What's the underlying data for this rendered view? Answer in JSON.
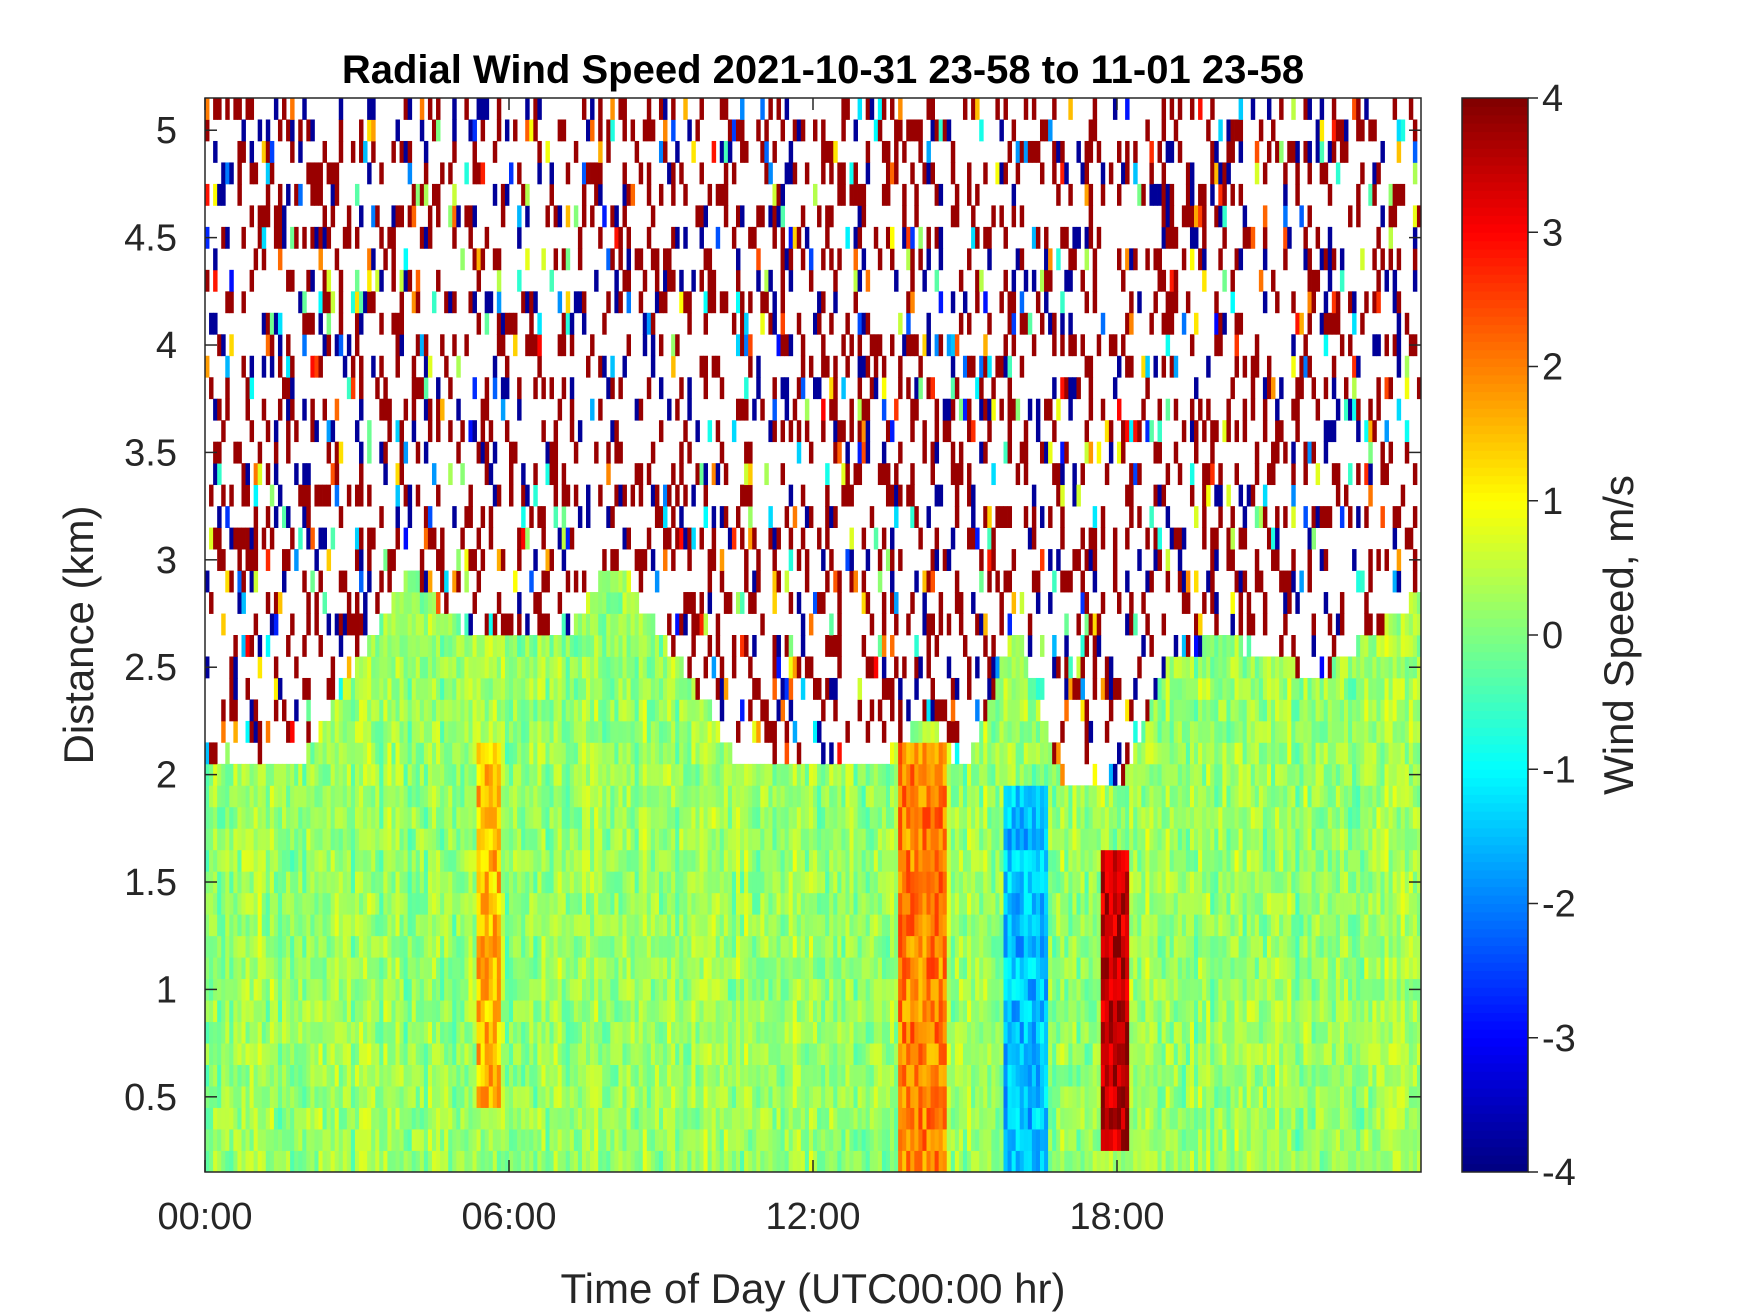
{
  "chart_data": {
    "type": "heatmap",
    "title": "Radial Wind Speed 2021-10-31 23-58 to 11-01 23-58",
    "xlabel": "Time of Day (UTC00:00 hr)",
    "ylabel": "Distance (km)",
    "colorbar_label": "Wind Speed, m/s",
    "colormap": "jet",
    "x_unit": "hours",
    "xlim": [
      0,
      24
    ],
    "ylim": [
      0.15,
      5.15
    ],
    "clim": [
      -4,
      4
    ],
    "x_ticks": [
      0,
      6,
      12,
      18
    ],
    "x_tick_labels": [
      "00:00",
      "06:00",
      "12:00",
      "18:00"
    ],
    "y_ticks": [
      0.5,
      1,
      1.5,
      2,
      2.5,
      3,
      3.5,
      4,
      4.5,
      5
    ],
    "y_tick_labels": [
      "0.5",
      "1",
      "1.5",
      "2",
      "2.5",
      "3",
      "3.5",
      "4",
      "4.5",
      "5"
    ],
    "colorbar_ticks": [
      -4,
      -3,
      -2,
      -1,
      0,
      1,
      2,
      3,
      4
    ],
    "colorbar_tick_labels": [
      "-4",
      "-3",
      "-2",
      "-1",
      "0",
      "1",
      "2",
      "3",
      "4"
    ],
    "grid": false,
    "valid_data_top_km": [
      [
        0,
        2.05
      ],
      [
        2,
        2.1
      ],
      [
        4,
        2.95
      ],
      [
        5,
        2.7
      ],
      [
        7,
        2.6
      ],
      [
        8,
        3.0
      ],
      [
        9,
        2.65
      ],
      [
        10,
        2.3
      ],
      [
        10.5,
        2.05
      ],
      [
        12,
        2.05
      ],
      [
        13.5,
        2.05
      ],
      [
        14.2,
        2.3
      ],
      [
        15,
        2.0
      ],
      [
        16,
        2.7
      ],
      [
        17,
        1.9
      ],
      [
        18,
        1.9
      ],
      [
        19,
        2.5
      ],
      [
        20,
        2.65
      ],
      [
        22,
        2.45
      ],
      [
        24,
        2.85
      ]
    ],
    "features": [
      {
        "x_start": 13.7,
        "x_end": 14.6,
        "y_start": 0.2,
        "y_end": 2.1,
        "mean_speed": 2.0
      },
      {
        "x_start": 17.7,
        "x_end": 18.2,
        "y_start": 0.3,
        "y_end": 1.6,
        "mean_speed": 3.5
      },
      {
        "x_start": 15.8,
        "x_end": 16.6,
        "y_start": 0.2,
        "y_end": 1.9,
        "mean_speed": -1.5
      },
      {
        "x_start": 5.4,
        "x_end": 5.8,
        "y_start": 0.5,
        "y_end": 2.1,
        "mean_speed": 1.5
      }
    ]
  }
}
